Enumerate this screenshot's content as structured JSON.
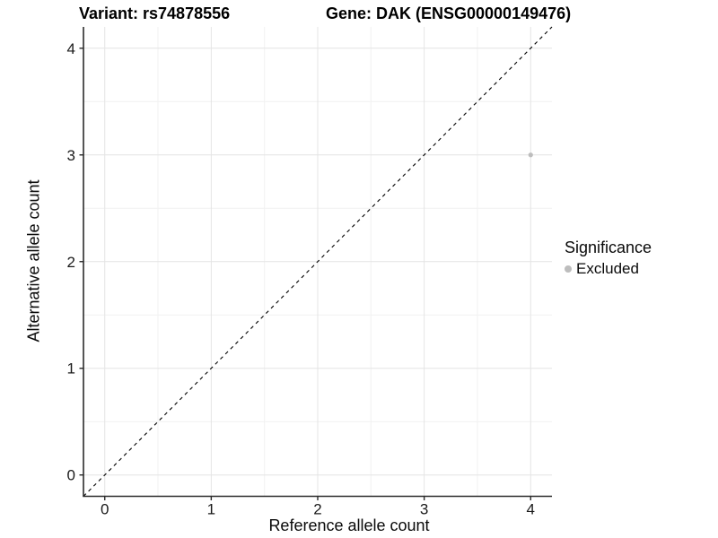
{
  "figure": {
    "background": "#ffffff"
  },
  "titles": {
    "variant": "Variant: rs74878556",
    "gene": "Gene: DAK (ENSG00000149476)"
  },
  "chart_data": {
    "type": "scatter",
    "title_left": "Variant: rs74878556",
    "title_right": "Gene: DAK (ENSG00000149476)",
    "xlabel": "Reference allele count",
    "ylabel": "Alternative allele count",
    "xlim": [
      -0.2,
      4.2
    ],
    "ylim": [
      -0.2,
      4.2
    ],
    "x_ticks": [
      0,
      1,
      2,
      3,
      4
    ],
    "y_ticks": [
      0,
      1,
      2,
      3,
      4
    ],
    "minor_grid_step": 0.5,
    "grid": true,
    "series": [
      {
        "name": "Excluded",
        "color": "#bdbdbd",
        "points": [
          {
            "x": 4,
            "y": 3
          }
        ]
      }
    ],
    "reference_line": {
      "kind": "identity",
      "from": [
        -0.2,
        -0.2
      ],
      "to": [
        4.2,
        4.2
      ],
      "style": "dashed",
      "color": "#000000"
    },
    "legend": {
      "title": "Significance",
      "position": "right",
      "items": [
        {
          "label": "Excluded",
          "color": "#bdbdbd"
        }
      ]
    }
  },
  "colors": {
    "panel_background": "#ffffff",
    "major_grid": "#e4e4e4",
    "minor_grid": "#f1f1f1",
    "axis_line": "#2b2b2b",
    "tick_mark": "#2b2b2b",
    "tick_label": "#1a1a1a",
    "point": "#bdbdbd",
    "dashed_line": "#000000"
  }
}
